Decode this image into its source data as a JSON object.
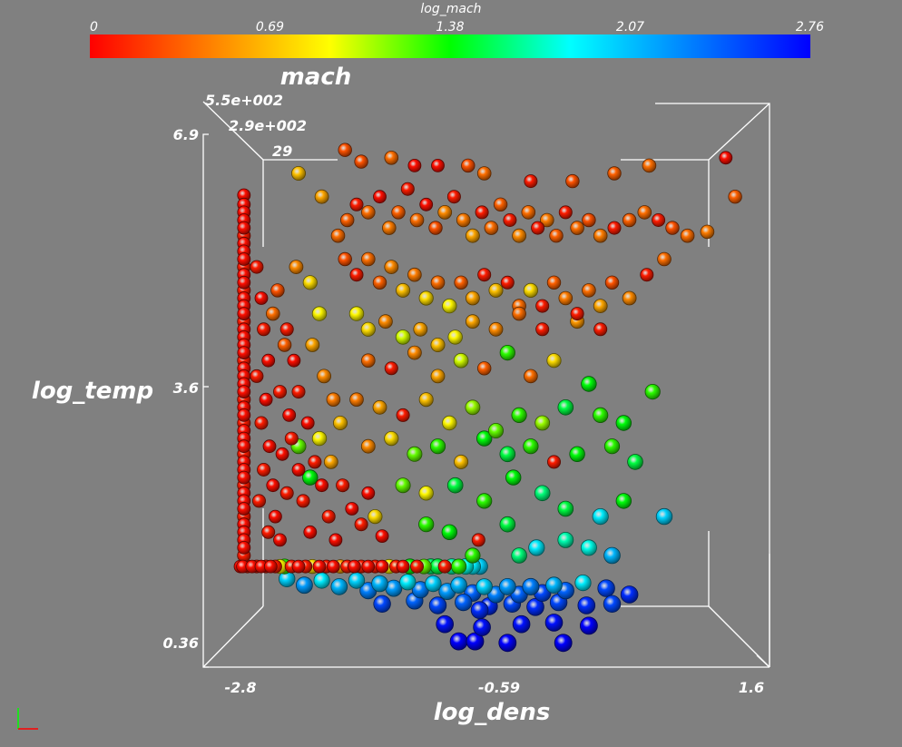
{
  "chart_data": {
    "type": "scatter",
    "title": "",
    "xlabel": "log_dens",
    "ylabel": "log_temp",
    "zlabel": "mach",
    "color_by": "log_mach",
    "colorbar": {
      "title": "log_mach",
      "ticks": [
        "0",
        "0.69",
        "1.38",
        "2.07",
        "2.76"
      ],
      "range": [
        0,
        2.76
      ],
      "colors": [
        "#ff0000",
        "#ff8000",
        "#ffff00",
        "#00ff00",
        "#00ffff",
        "#0080ff",
        "#0000ff"
      ]
    },
    "x_ticks": [
      "-2.8",
      "-0.59",
      "1.6"
    ],
    "y_ticks": [
      "6.9",
      "3.6",
      "0.36"
    ],
    "z_ticks": [
      "5.5e+002",
      "2.9e+002",
      "29"
    ],
    "xlim": [
      -2.8,
      1.6
    ],
    "ylim": [
      0.36,
      6.9
    ],
    "points": [
      [
        -2.8,
        1.36,
        0.05
      ],
      [
        -2.78,
        1.36,
        0.05
      ],
      [
        -2.74,
        1.36,
        0.1
      ],
      [
        -2.7,
        1.36,
        0.05
      ],
      [
        -2.66,
        1.36,
        0.1
      ],
      [
        -2.62,
        1.36,
        0.05
      ],
      [
        -2.58,
        1.36,
        0.1
      ],
      [
        -2.54,
        1.36,
        0.05
      ],
      [
        -2.5,
        1.36,
        0.1
      ],
      [
        -2.46,
        1.36,
        0.9
      ],
      [
        -2.42,
        1.36,
        1.3
      ],
      [
        -2.36,
        1.36,
        0.1
      ],
      [
        -2.3,
        1.36,
        0.05
      ],
      [
        -2.24,
        1.36,
        0.1
      ],
      [
        -2.18,
        1.36,
        0.8
      ],
      [
        -2.12,
        1.36,
        0.05
      ],
      [
        -2.06,
        1.36,
        0.1
      ],
      [
        -2.0,
        1.36,
        0.05
      ],
      [
        -1.94,
        1.36,
        0.6
      ],
      [
        -1.88,
        1.36,
        0.1
      ],
      [
        -1.82,
        1.36,
        0.05
      ],
      [
        -1.76,
        1.36,
        0.1
      ],
      [
        -1.7,
        1.36,
        0.05
      ],
      [
        -1.64,
        1.36,
        0.1
      ],
      [
        -1.58,
        1.36,
        0.05
      ],
      [
        -1.52,
        1.36,
        0.9
      ],
      [
        -1.46,
        1.36,
        0.1
      ],
      [
        -1.4,
        1.36,
        0.05
      ],
      [
        -1.34,
        1.36,
        1.4
      ],
      [
        -1.28,
        1.36,
        0.1
      ],
      [
        -1.22,
        1.36,
        1.2
      ],
      [
        -1.16,
        1.36,
        1.6
      ],
      [
        -1.1,
        1.36,
        1.5
      ],
      [
        -1.04,
        1.36,
        0.1
      ],
      [
        -0.98,
        1.36,
        1.7
      ],
      [
        -0.92,
        1.36,
        1.3
      ],
      [
        -0.86,
        1.36,
        1.8
      ],
      [
        -0.8,
        1.36,
        1.9
      ],
      [
        -0.74,
        1.36,
        2.0
      ],
      [
        -2.77,
        6.12,
        0.05
      ],
      [
        -2.77,
        6.0,
        0.05
      ],
      [
        -2.77,
        5.9,
        0.05
      ],
      [
        -2.77,
        5.8,
        0.05
      ],
      [
        -2.77,
        5.7,
        0.05
      ],
      [
        -2.77,
        5.6,
        0.1
      ],
      [
        -2.77,
        5.5,
        0.05
      ],
      [
        -2.77,
        5.4,
        0.05
      ],
      [
        -2.77,
        5.3,
        0.05
      ],
      [
        -2.77,
        5.2,
        0.1
      ],
      [
        -2.77,
        5.1,
        0.05
      ],
      [
        -2.77,
        5.0,
        0.05
      ],
      [
        -2.77,
        4.9,
        0.1
      ],
      [
        -2.77,
        4.8,
        0.05
      ],
      [
        -2.77,
        4.7,
        0.05
      ],
      [
        -2.77,
        4.6,
        0.05
      ],
      [
        -2.77,
        4.5,
        0.1
      ],
      [
        -2.77,
        4.4,
        0.05
      ],
      [
        -2.77,
        4.3,
        0.05
      ],
      [
        -2.77,
        4.2,
        0.05
      ],
      [
        -2.77,
        4.1,
        0.05
      ],
      [
        -2.77,
        4.0,
        0.1
      ],
      [
        -2.77,
        3.9,
        0.05
      ],
      [
        -2.77,
        3.8,
        0.05
      ],
      [
        -2.77,
        3.7,
        0.05
      ],
      [
        -2.77,
        3.6,
        0.05
      ],
      [
        -2.77,
        3.5,
        0.1
      ],
      [
        -2.77,
        3.4,
        0.05
      ],
      [
        -2.77,
        3.3,
        0.05
      ],
      [
        -2.77,
        3.2,
        0.1
      ],
      [
        -2.77,
        3.1,
        0.05
      ],
      [
        -2.77,
        3.0,
        0.05
      ],
      [
        -2.77,
        2.9,
        0.05
      ],
      [
        -2.77,
        2.8,
        0.1
      ],
      [
        -2.77,
        2.7,
        0.05
      ],
      [
        -2.77,
        2.6,
        0.05
      ],
      [
        -2.77,
        2.5,
        0.05
      ],
      [
        -2.77,
        2.4,
        0.1
      ],
      [
        -2.77,
        2.3,
        0.05
      ],
      [
        -2.77,
        2.2,
        0.05
      ],
      [
        -2.77,
        2.1,
        0.05
      ],
      [
        -2.77,
        2.0,
        0.1
      ],
      [
        -2.77,
        1.9,
        0.05
      ],
      [
        -2.77,
        1.8,
        0.05
      ],
      [
        -2.77,
        1.7,
        0.05
      ],
      [
        -2.77,
        1.6,
        0.05
      ],
      [
        -2.77,
        1.5,
        0.1
      ],
      [
        -2.66,
        5.2,
        0.1
      ],
      [
        -2.62,
        4.8,
        0.05
      ],
      [
        -2.6,
        4.4,
        0.1
      ],
      [
        -2.56,
        4.0,
        0.05
      ],
      [
        -2.66,
        3.8,
        0.1
      ],
      [
        -2.58,
        3.5,
        0.05
      ],
      [
        -2.62,
        3.2,
        0.1
      ],
      [
        -2.55,
        2.9,
        0.05
      ],
      [
        -2.6,
        2.6,
        0.1
      ],
      [
        -2.52,
        2.4,
        0.05
      ],
      [
        -2.64,
        2.2,
        0.1
      ],
      [
        -2.5,
        2.0,
        0.05
      ],
      [
        -2.56,
        1.8,
        0.1
      ],
      [
        -2.46,
        1.7,
        0.05
      ],
      [
        -2.4,
        2.3,
        0.1
      ],
      [
        -2.44,
        2.8,
        0.05
      ],
      [
        -2.36,
        3.0,
        0.1
      ],
      [
        -2.3,
        2.6,
        0.05
      ],
      [
        -2.26,
        2.2,
        0.1
      ],
      [
        -2.2,
        1.8,
        0.05
      ],
      [
        -2.4,
        4.4,
        0.1
      ],
      [
        -2.34,
        4.0,
        0.05
      ],
      [
        -2.46,
        3.6,
        0.1
      ],
      [
        -2.38,
        3.3,
        0.05
      ],
      [
        -2.3,
        3.6,
        0.1
      ],
      [
        -2.22,
        3.2,
        0.05
      ],
      [
        -2.16,
        2.7,
        0.1
      ],
      [
        -2.1,
        2.4,
        0.05
      ],
      [
        -2.04,
        2.0,
        0.1
      ],
      [
        -1.98,
        1.7,
        0.05
      ],
      [
        -2.48,
        4.9,
        0.3
      ],
      [
        -2.52,
        4.6,
        0.4
      ],
      [
        -2.42,
        4.2,
        0.35
      ],
      [
        -2.32,
        5.2,
        0.5
      ],
      [
        -2.2,
        5.0,
        0.8
      ],
      [
        -2.12,
        4.6,
        0.9
      ],
      [
        -2.18,
        4.2,
        0.6
      ],
      [
        -2.08,
        3.8,
        0.5
      ],
      [
        -2.0,
        3.5,
        0.45
      ],
      [
        -1.94,
        3.2,
        0.7
      ],
      [
        -2.3,
        2.9,
        1.2
      ],
      [
        -2.2,
        2.5,
        1.4
      ],
      [
        -2.12,
        3.0,
        0.9
      ],
      [
        -2.02,
        2.7,
        0.6
      ],
      [
        -1.92,
        2.4,
        0.1
      ],
      [
        -1.84,
        2.1,
        0.05
      ],
      [
        -1.76,
        1.9,
        0.1
      ],
      [
        -1.7,
        2.3,
        0.05
      ],
      [
        -1.64,
        2.0,
        0.8
      ],
      [
        -1.58,
        1.75,
        0.05
      ],
      [
        -1.96,
        5.6,
        0.4
      ],
      [
        -1.88,
        5.8,
        0.35
      ],
      [
        -1.8,
        6.0,
        0.1
      ],
      [
        -1.7,
        5.9,
        0.4
      ],
      [
        -1.6,
        6.1,
        0.05
      ],
      [
        -1.52,
        5.7,
        0.45
      ],
      [
        -1.44,
        5.9,
        0.35
      ],
      [
        -1.36,
        6.2,
        0.1
      ],
      [
        -1.28,
        5.8,
        0.4
      ],
      [
        -1.2,
        6.0,
        0.05
      ],
      [
        -1.12,
        5.7,
        0.3
      ],
      [
        -1.04,
        5.9,
        0.5
      ],
      [
        -0.96,
        6.1,
        0.1
      ],
      [
        -0.88,
        5.8,
        0.45
      ],
      [
        -0.8,
        5.6,
        0.6
      ],
      [
        -0.72,
        5.9,
        0.1
      ],
      [
        -0.64,
        5.7,
        0.4
      ],
      [
        -0.56,
        6.0,
        0.35
      ],
      [
        -0.48,
        5.8,
        0.1
      ],
      [
        -0.4,
        5.6,
        0.5
      ],
      [
        -0.32,
        5.9,
        0.4
      ],
      [
        -0.24,
        5.7,
        0.1
      ],
      [
        -0.16,
        5.8,
        0.45
      ],
      [
        -0.08,
        5.6,
        0.35
      ],
      [
        0.0,
        5.9,
        0.1
      ],
      [
        0.1,
        5.7,
        0.4
      ],
      [
        0.2,
        5.8,
        0.3
      ],
      [
        0.3,
        5.6,
        0.45
      ],
      [
        0.42,
        5.7,
        0.1
      ],
      [
        0.55,
        5.8,
        0.35
      ],
      [
        0.68,
        5.9,
        0.4
      ],
      [
        0.8,
        5.8,
        0.1
      ],
      [
        0.92,
        5.7,
        0.3
      ],
      [
        1.05,
        5.6,
        0.4
      ],
      [
        1.22,
        5.65,
        0.45
      ],
      [
        1.38,
        6.6,
        0.05
      ],
      [
        1.46,
        6.1,
        0.35
      ],
      [
        0.72,
        6.5,
        0.4
      ],
      [
        0.42,
        6.4,
        0.35
      ],
      [
        0.06,
        6.3,
        0.3
      ],
      [
        -0.3,
        6.3,
        0.1
      ],
      [
        -0.7,
        6.4,
        0.4
      ],
      [
        -1.1,
        6.5,
        0.05
      ],
      [
        -1.5,
        6.6,
        0.4
      ],
      [
        -1.9,
        6.7,
        0.3
      ],
      [
        -2.3,
        6.4,
        0.7
      ],
      [
        -2.1,
        6.1,
        0.6
      ],
      [
        -1.76,
        6.55,
        0.3
      ],
      [
        -1.3,
        6.5,
        0.05
      ],
      [
        -0.84,
        6.5,
        0.3
      ],
      [
        -1.9,
        5.3,
        0.3
      ],
      [
        -1.8,
        5.1,
        0.1
      ],
      [
        -1.7,
        5.3,
        0.4
      ],
      [
        -1.6,
        5.0,
        0.35
      ],
      [
        -1.5,
        5.2,
        0.5
      ],
      [
        -1.4,
        4.9,
        0.7
      ],
      [
        -1.3,
        5.1,
        0.45
      ],
      [
        -1.2,
        4.8,
        0.8
      ],
      [
        -1.1,
        5.0,
        0.4
      ],
      [
        -1.0,
        4.7,
        0.9
      ],
      [
        -0.9,
        5.0,
        0.35
      ],
      [
        -0.8,
        4.8,
        0.6
      ],
      [
        -0.7,
        5.1,
        0.1
      ],
      [
        -0.6,
        4.9,
        0.7
      ],
      [
        -0.5,
        5.0,
        0.1
      ],
      [
        -0.4,
        4.7,
        0.4
      ],
      [
        -0.3,
        4.9,
        0.8
      ],
      [
        -0.2,
        4.7,
        0.1
      ],
      [
        -0.1,
        5.0,
        0.35
      ],
      [
        0.0,
        4.8,
        0.45
      ],
      [
        0.1,
        4.6,
        0.1
      ],
      [
        0.2,
        4.9,
        0.4
      ],
      [
        0.3,
        4.7,
        0.6
      ],
      [
        0.4,
        5.0,
        0.3
      ],
      [
        0.55,
        4.8,
        0.5
      ],
      [
        0.7,
        5.1,
        0.1
      ],
      [
        0.85,
        5.3,
        0.4
      ],
      [
        -1.8,
        4.6,
        0.9
      ],
      [
        -1.7,
        4.4,
        0.8
      ],
      [
        -1.55,
        4.5,
        0.5
      ],
      [
        -1.4,
        4.3,
        1.0
      ],
      [
        -1.25,
        4.4,
        0.6
      ],
      [
        -1.1,
        4.2,
        0.7
      ],
      [
        -0.95,
        4.3,
        0.9
      ],
      [
        -0.8,
        4.5,
        0.6
      ],
      [
        -0.6,
        4.4,
        0.5
      ],
      [
        -0.4,
        4.6,
        0.4
      ],
      [
        -0.2,
        4.4,
        0.1
      ],
      [
        0.1,
        4.5,
        0.55
      ],
      [
        0.3,
        4.4,
        0.1
      ],
      [
        -1.7,
        4.0,
        0.4
      ],
      [
        -1.5,
        3.9,
        0.1
      ],
      [
        -1.3,
        4.1,
        0.5
      ],
      [
        -1.1,
        3.8,
        0.6
      ],
      [
        -0.9,
        4.0,
        1.0
      ],
      [
        -0.7,
        3.9,
        0.35
      ],
      [
        -0.5,
        4.1,
        1.3
      ],
      [
        -0.3,
        3.8,
        0.4
      ],
      [
        -0.1,
        4.0,
        0.8
      ],
      [
        0.2,
        3.7,
        1.4
      ],
      [
        -1.8,
        3.5,
        0.45
      ],
      [
        -1.6,
        3.4,
        0.6
      ],
      [
        -1.4,
        3.3,
        0.1
      ],
      [
        -1.2,
        3.5,
        0.7
      ],
      [
        -1.0,
        3.2,
        0.9
      ],
      [
        -0.8,
        3.4,
        1.1
      ],
      [
        -0.6,
        3.1,
        1.2
      ],
      [
        -0.4,
        3.3,
        1.3
      ],
      [
        -0.2,
        3.2,
        1.1
      ],
      [
        0.0,
        3.4,
        1.5
      ],
      [
        0.3,
        3.3,
        1.3
      ],
      [
        0.5,
        3.2,
        1.4
      ],
      [
        0.75,
        3.6,
        1.3
      ],
      [
        -1.7,
        2.9,
        0.5
      ],
      [
        -1.5,
        3.0,
        0.8
      ],
      [
        -1.3,
        2.8,
        1.2
      ],
      [
        -1.1,
        2.9,
        1.3
      ],
      [
        -0.9,
        2.7,
        0.7
      ],
      [
        -0.7,
        3.0,
        1.4
      ],
      [
        -0.5,
        2.8,
        1.5
      ],
      [
        -0.3,
        2.9,
        1.3
      ],
      [
        -0.1,
        2.7,
        0.1
      ],
      [
        0.1,
        2.8,
        1.4
      ],
      [
        0.4,
        2.9,
        1.3
      ],
      [
        0.6,
        2.7,
        1.5
      ],
      [
        -1.4,
        2.4,
        1.2
      ],
      [
        -1.2,
        2.3,
        0.9
      ],
      [
        -0.95,
        2.4,
        1.5
      ],
      [
        -0.7,
        2.2,
        1.3
      ],
      [
        -0.45,
        2.5,
        1.4
      ],
      [
        -0.2,
        2.3,
        1.6
      ],
      [
        0.0,
        2.1,
        1.5
      ],
      [
        0.3,
        2.0,
        1.9
      ],
      [
        0.5,
        2.2,
        1.4
      ],
      [
        0.85,
        2.0,
        2.0
      ],
      [
        -1.2,
        1.9,
        1.3
      ],
      [
        -1.0,
        1.8,
        1.4
      ],
      [
        -0.75,
        1.7,
        0.1
      ],
      [
        -0.5,
        1.9,
        1.5
      ],
      [
        -0.25,
        1.6,
        1.9
      ],
      [
        0.0,
        1.7,
        1.7
      ],
      [
        0.2,
        1.6,
        1.8
      ],
      [
        -0.4,
        1.5,
        1.6
      ],
      [
        -0.8,
        1.5,
        1.3
      ],
      [
        0.4,
        1.5,
        2.1
      ],
      [
        -2.4,
        1.2,
        2.0
      ],
      [
        -2.25,
        1.12,
        2.2
      ],
      [
        -2.1,
        1.18,
        1.9
      ],
      [
        -1.95,
        1.1,
        2.1
      ],
      [
        -1.8,
        1.18,
        2.0
      ],
      [
        -1.7,
        1.05,
        2.3
      ],
      [
        -1.6,
        1.14,
        2.1
      ],
      [
        -1.48,
        1.08,
        2.2
      ],
      [
        -1.36,
        1.16,
        1.9
      ],
      [
        -1.25,
        1.06,
        2.3
      ],
      [
        -1.14,
        1.14,
        2.0
      ],
      [
        -1.02,
        1.04,
        2.2
      ],
      [
        -0.92,
        1.12,
        2.1
      ],
      [
        -0.8,
        1.02,
        2.4
      ],
      [
        -0.7,
        1.1,
        2.0
      ],
      [
        -0.6,
        1.0,
        2.3
      ],
      [
        -0.5,
        1.1,
        2.2
      ],
      [
        -0.4,
        1.0,
        2.4
      ],
      [
        -0.3,
        1.1,
        2.3
      ],
      [
        -0.2,
        1.02,
        2.5
      ],
      [
        -0.1,
        1.12,
        2.1
      ],
      [
        0.0,
        1.05,
        2.4
      ],
      [
        0.15,
        1.15,
        1.9
      ],
      [
        0.35,
        1.08,
        2.5
      ],
      [
        0.55,
        1.0,
        2.6
      ],
      [
        -1.58,
        0.88,
        2.5
      ],
      [
        -1.3,
        0.92,
        2.4
      ],
      [
        -1.1,
        0.86,
        2.5
      ],
      [
        -0.88,
        0.9,
        2.4
      ],
      [
        -0.66,
        0.85,
        2.6
      ],
      [
        -0.46,
        0.88,
        2.5
      ],
      [
        -0.26,
        0.84,
        2.6
      ],
      [
        -0.06,
        0.9,
        2.5
      ],
      [
        0.18,
        0.86,
        2.6
      ],
      [
        0.4,
        0.88,
        2.5
      ],
      [
        -1.04,
        0.62,
        2.7
      ],
      [
        -0.72,
        0.58,
        2.7
      ],
      [
        -0.38,
        0.62,
        2.7
      ],
      [
        -0.1,
        0.64,
        2.7
      ],
      [
        0.2,
        0.6,
        2.76
      ],
      [
        -0.92,
        0.4,
        2.76
      ],
      [
        -0.78,
        0.4,
        2.76
      ],
      [
        -0.5,
        0.38,
        2.76
      ],
      [
        -0.02,
        0.38,
        2.76
      ],
      [
        -0.74,
        0.8,
        2.6
      ]
    ]
  }
}
